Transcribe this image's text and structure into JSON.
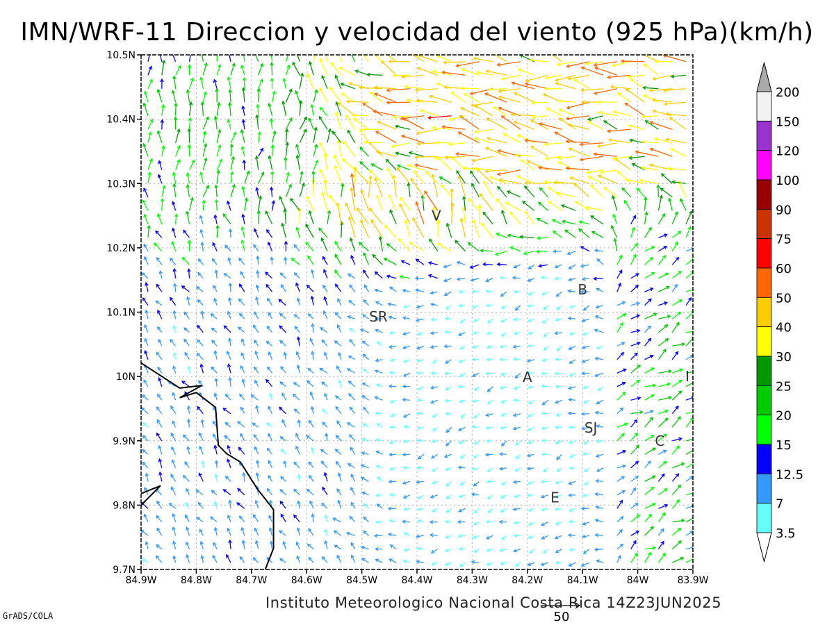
{
  "title": "IMN/WRF-11 Direccion y velocidad del viento (925 hPa)(km/h)",
  "footer": {
    "credit": "Instituto Meteorologico Nacional Costa Rica 14Z23JUN2025",
    "software": "GrADS/COLA"
  },
  "map": {
    "lat_range": [
      9.7,
      10.5
    ],
    "lon_range": [
      -84.9,
      -83.9
    ],
    "lat_ticks": [
      {
        "value": 10.5,
        "label": "10.5N"
      },
      {
        "value": 10.4,
        "label": "10.4N"
      },
      {
        "value": 10.3,
        "label": "10.3N"
      },
      {
        "value": 10.2,
        "label": "10.2N"
      },
      {
        "value": 10.1,
        "label": "10.1N"
      },
      {
        "value": 10.0,
        "label": "10N"
      },
      {
        "value": 9.9,
        "label": "9.9N"
      },
      {
        "value": 9.8,
        "label": "9.8N"
      },
      {
        "value": 9.7,
        "label": "9.7N"
      }
    ],
    "lon_ticks": [
      {
        "value": -84.9,
        "label": "84.9W"
      },
      {
        "value": -84.8,
        "label": "84.8W"
      },
      {
        "value": -84.7,
        "label": "84.7W"
      },
      {
        "value": -84.6,
        "label": "84.6W"
      },
      {
        "value": -84.5,
        "label": "84.5W"
      },
      {
        "value": -84.4,
        "label": "84.4W"
      },
      {
        "value": -84.3,
        "label": "84.3W"
      },
      {
        "value": -84.2,
        "label": "84.2W"
      },
      {
        "value": -84.1,
        "label": "84.1W"
      },
      {
        "value": -84.0,
        "label": "84W"
      },
      {
        "value": -83.9,
        "label": "83.9W"
      }
    ],
    "grid": true,
    "city_labels": [
      {
        "label": "SR",
        "lon": -84.47,
        "lat": 10.093
      },
      {
        "label": "B",
        "lon": -84.1,
        "lat": 10.135
      },
      {
        "label": "A",
        "lon": -84.2,
        "lat": 9.999
      },
      {
        "label": "SJ",
        "lon": -84.085,
        "lat": 9.92
      },
      {
        "label": "C",
        "lon": -83.96,
        "lat": 9.9
      },
      {
        "label": "E",
        "lon": -84.15,
        "lat": 9.812
      },
      {
        "label": "V",
        "lon": -84.365,
        "lat": 10.25
      },
      {
        "label": "I",
        "lon": -83.91,
        "lat": 10.0
      }
    ],
    "coastline": [
      [
        [
          -84.9,
          10.021
        ],
        [
          -84.83,
          9.982
        ],
        [
          -84.79,
          9.986
        ],
        [
          -84.83,
          9.967
        ],
        [
          -84.8,
          9.975
        ],
        [
          -84.765,
          9.952
        ],
        [
          -84.76,
          9.893
        ],
        [
          -84.745,
          9.88
        ],
        [
          -84.72,
          9.867
        ],
        [
          -84.69,
          9.826
        ],
        [
          -84.66,
          9.793
        ],
        [
          -84.66,
          9.733
        ],
        [
          -84.675,
          9.7
        ]
      ],
      [
        [
          -84.9,
          9.818
        ],
        [
          -84.865,
          9.83
        ],
        [
          -84.9,
          9.8
        ]
      ]
    ]
  },
  "wind_legend": {
    "units": "km/h",
    "ticks": [
      "200",
      "150",
      "120",
      "100",
      "90",
      "75",
      "60",
      "50",
      "40",
      "30",
      "25",
      "20",
      "15",
      "12.5",
      "7",
      "3.5"
    ],
    "colors": [
      "#f2f2f2",
      "#9933cc",
      "#ff00ff",
      "#990000",
      "#cc3300",
      "#ff0000",
      "#ff6600",
      "#ffcc00",
      "#ffff00",
      "#009900",
      "#00cc00",
      "#00ff00",
      "#0000ff",
      "#3399ff",
      "#66ffff"
    ],
    "max_cap_color": "#aaaaaa",
    "min_cap_color": "#ffffff"
  },
  "reference_vector": {
    "label": "50",
    "speed": 50
  },
  "wind_field": [
    {
      "region": "north-flow-belt",
      "lon": [
        -84.5,
        -83.9
      ],
      "lat": [
        10.32,
        10.48
      ],
      "direction_deg": 280,
      "speed_kmh": 45
    },
    {
      "region": "northwest-updraft-zone",
      "lon": [
        -84.9,
        -84.55
      ],
      "lat": [
        10.25,
        10.48
      ],
      "direction_deg": 10,
      "speed_kmh": 20
    },
    {
      "region": "convergence-band",
      "lon": [
        -84.62,
        -84.25
      ],
      "lat": [
        10.2,
        10.3
      ],
      "direction_deg": 345,
      "speed_kmh": 40
    },
    {
      "region": "central-valley-calm",
      "lon": [
        -84.45,
        -84.05
      ],
      "lat": [
        9.75,
        10.15
      ],
      "direction_deg": 250,
      "speed_kmh": 6
    },
    {
      "region": "western-lowland-flow",
      "lon": [
        -84.9,
        -84.5
      ],
      "lat": [
        9.7,
        10.2
      ],
      "direction_deg": 330,
      "speed_kmh": 10
    },
    {
      "region": "eastern-slope-flow",
      "lon": [
        -84.05,
        -83.9
      ],
      "lat": [
        9.75,
        10.15
      ],
      "direction_deg": 60,
      "speed_kmh": 18
    }
  ]
}
